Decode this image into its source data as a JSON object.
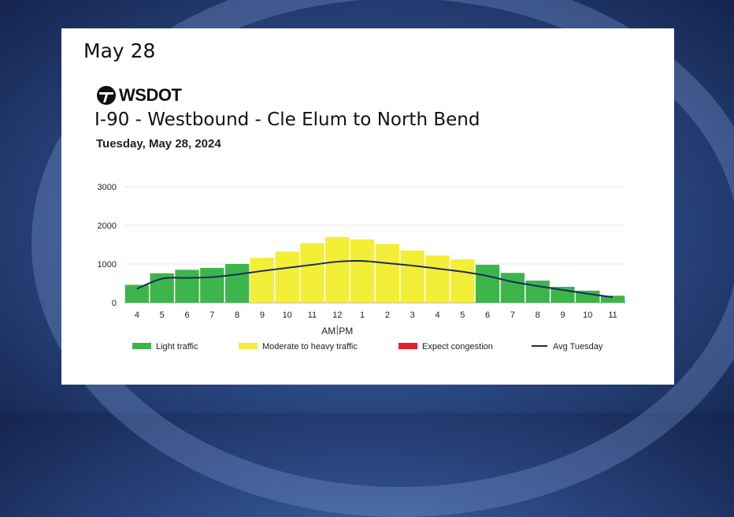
{
  "heading": "May 28",
  "logo": {
    "text": "WSDOT",
    "icon": "wsdot-icon"
  },
  "chart_data": {
    "type": "bar",
    "title": "I-90 - Westbound - Cle Elum to North Bend",
    "subtitle": "Tuesday, May 28, 2024",
    "categories": [
      "4",
      "5",
      "6",
      "7",
      "8",
      "9",
      "10",
      "11",
      "12",
      "1",
      "2",
      "3",
      "4",
      "5",
      "6",
      "7",
      "8",
      "9",
      "10",
      "11"
    ],
    "ampm_labels": [
      "AM",
      "PM"
    ],
    "values": [
      460,
      760,
      850,
      900,
      1000,
      1160,
      1320,
      1540,
      1700,
      1640,
      1520,
      1350,
      1220,
      1120,
      980,
      770,
      570,
      410,
      310,
      180
    ],
    "levels": [
      "light",
      "light",
      "light",
      "light",
      "light",
      "moderate",
      "moderate",
      "moderate",
      "moderate",
      "moderate",
      "moderate",
      "moderate",
      "moderate",
      "moderate",
      "light",
      "light",
      "light",
      "light",
      "light",
      "light"
    ],
    "avg_series": {
      "name": "Avg Tuesday",
      "values": [
        360,
        620,
        640,
        660,
        730,
        820,
        900,
        980,
        1060,
        1080,
        1020,
        960,
        880,
        800,
        690,
        540,
        430,
        330,
        230,
        140
      ]
    },
    "ylim": [
      0,
      3000
    ],
    "yticks": [
      0,
      1000,
      2000,
      3000
    ],
    "grid": true,
    "legend_placement": "bottom",
    "legend": [
      {
        "key": "light",
        "label": "Light traffic",
        "color": "#3cb54a"
      },
      {
        "key": "moderate",
        "label": "Moderate to heavy traffic",
        "color": "#f3ee36"
      },
      {
        "key": "congestion",
        "label": "Expect congestion",
        "color": "#e8202a"
      },
      {
        "key": "avg",
        "label": "Avg Tuesday",
        "color": "#1d2a5a"
      }
    ]
  }
}
